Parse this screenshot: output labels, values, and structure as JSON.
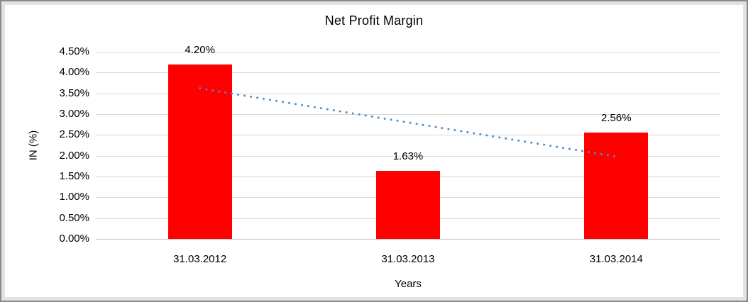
{
  "chart_data": {
    "type": "bar",
    "title": "Net Profit Margin",
    "xlabel": "Years",
    "ylabel": "IN (%)",
    "categories": [
      "31.03.2012",
      "31.03.2013",
      "31.03.2014"
    ],
    "values": [
      4.2,
      1.63,
      2.56
    ],
    "data_labels": [
      "4.20%",
      "1.63%",
      "2.56%"
    ],
    "ylim": [
      0,
      4.5
    ],
    "ytick_step": 0.5,
    "ytick_labels": [
      "4.50%",
      "4.00%",
      "3.50%",
      "3.00%",
      "2.50%",
      "2.00%",
      "1.50%",
      "1.00%",
      "0.50%",
      "0.00%"
    ],
    "bar_color": "#FF0000",
    "gridline_color": "#D9D9D9",
    "axis_line_color": "#C9C9C9",
    "grid": true,
    "legend_position": "none",
    "trendline": {
      "type": "linear",
      "style": "dotted",
      "color": "#4F8BC9",
      "start_value": 3.62,
      "end_value": 1.98
    }
  }
}
